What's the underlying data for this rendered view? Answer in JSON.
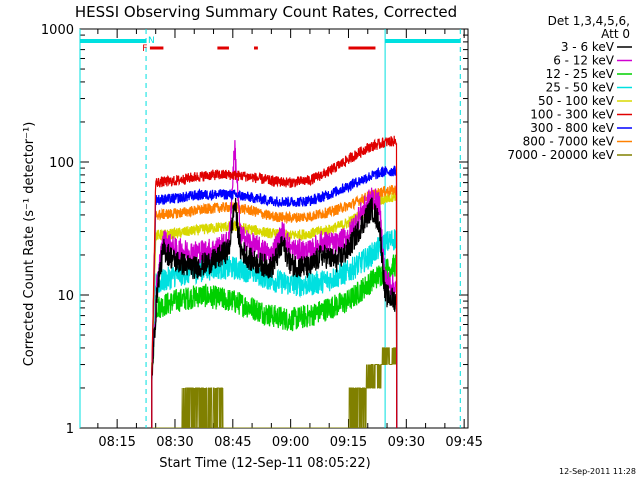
{
  "chart_data": {
    "type": "line",
    "title": "HESSI Observing Summary Count Rates, Corrected",
    "xlabel": "Start Time (12-Sep-11 08:05:22)",
    "ylabel": "Corrected Count Rate (s⁻¹ detector⁻¹)",
    "x_scale": "time",
    "y_scale": "log",
    "xlim": [
      "08:05:22",
      "09:46:00"
    ],
    "ylim": [
      1,
      1000
    ],
    "x_ticks": [
      "08:15",
      "08:30",
      "08:45",
      "09:00",
      "09:15",
      "09:30",
      "09:45"
    ],
    "y_ticks": [
      {
        "value": 1,
        "label": "1"
      },
      {
        "value": 10,
        "label": "10"
      },
      {
        "value": 100,
        "label": "100"
      },
      {
        "value": 1000,
        "label": "1000"
      }
    ],
    "legend": {
      "header": [
        "Det 1,3,4,5,6,",
        "Att 0"
      ],
      "position": "top-right, outside plot"
    },
    "series": [
      {
        "name": "3 - 6 keV",
        "color": "#000000",
        "points": [
          [
            "08:24:00",
            2.5
          ],
          [
            "08:25:30",
            12
          ],
          [
            "08:27:00",
            22
          ],
          [
            "08:30:00",
            18
          ],
          [
            "08:35:00",
            16
          ],
          [
            "08:40:00",
            18
          ],
          [
            "08:44:00",
            22
          ],
          [
            "08:45:30",
            50
          ],
          [
            "08:47:00",
            22
          ],
          [
            "08:50:00",
            18
          ],
          [
            "08:55:00",
            16
          ],
          [
            "08:58:00",
            24
          ],
          [
            "09:00:00",
            17
          ],
          [
            "09:05:00",
            16
          ],
          [
            "09:08:00",
            20
          ],
          [
            "09:12:00",
            18
          ],
          [
            "09:15:00",
            22
          ],
          [
            "09:18:00",
            32
          ],
          [
            "09:21:00",
            45
          ],
          [
            "09:23:00",
            35
          ],
          [
            "09:24:30",
            10
          ],
          [
            "09:27:30",
            9
          ]
        ]
      },
      {
        "name": "6 - 12 keV",
        "color": "#d000d0",
        "points": [
          [
            "08:24:00",
            2.5
          ],
          [
            "08:25:30",
            14
          ],
          [
            "08:27:00",
            26
          ],
          [
            "08:30:00",
            22
          ],
          [
            "08:35:00",
            21
          ],
          [
            "08:40:00",
            22
          ],
          [
            "08:44:00",
            25
          ],
          [
            "08:45:30",
            130
          ],
          [
            "08:47:00",
            28
          ],
          [
            "08:50:00",
            24
          ],
          [
            "08:55:00",
            20
          ],
          [
            "08:58:00",
            30
          ],
          [
            "09:00:00",
            22
          ],
          [
            "09:05:00",
            21
          ],
          [
            "09:08:00",
            25
          ],
          [
            "09:12:00",
            24
          ],
          [
            "09:15:00",
            28
          ],
          [
            "09:18:00",
            40
          ],
          [
            "09:21:00",
            55
          ],
          [
            "09:23:00",
            48
          ],
          [
            "09:24:30",
            13
          ],
          [
            "09:27:30",
            11
          ]
        ]
      },
      {
        "name": "12 - 25 keV",
        "color": "#00d000",
        "points": [
          [
            "08:24:00",
            2.5
          ],
          [
            "08:25:00",
            8
          ],
          [
            "08:30:00",
            9
          ],
          [
            "08:37:00",
            10
          ],
          [
            "08:45:00",
            9
          ],
          [
            "08:50:00",
            8
          ],
          [
            "08:55:00",
            7
          ],
          [
            "09:00:00",
            6.5
          ],
          [
            "09:05:00",
            7
          ],
          [
            "09:10:00",
            8
          ],
          [
            "09:15:00",
            9
          ],
          [
            "09:20:00",
            12
          ],
          [
            "09:24:00",
            15
          ],
          [
            "09:27:30",
            17
          ]
        ]
      },
      {
        "name": "25 - 50 keV",
        "color": "#00e0e0",
        "points": [
          [
            "08:24:00",
            2.5
          ],
          [
            "08:25:00",
            12
          ],
          [
            "08:30:00",
            14
          ],
          [
            "08:40:00",
            16
          ],
          [
            "08:45:00",
            16
          ],
          [
            "08:50:00",
            15
          ],
          [
            "08:55:00",
            13
          ],
          [
            "09:00:00",
            12
          ],
          [
            "09:05:00",
            12
          ],
          [
            "09:10:00",
            13
          ],
          [
            "09:15:00",
            15
          ],
          [
            "09:20:00",
            19
          ],
          [
            "09:24:00",
            24
          ],
          [
            "09:27:30",
            27
          ]
        ]
      },
      {
        "name": "50 - 100 keV",
        "color": "#d8d800",
        "points": [
          [
            "08:24:00",
            2.5
          ],
          [
            "08:25:00",
            28
          ],
          [
            "08:30:00",
            29
          ],
          [
            "08:40:00",
            32
          ],
          [
            "08:45:00",
            33
          ],
          [
            "08:50:00",
            31
          ],
          [
            "08:55:00",
            29
          ],
          [
            "09:00:00",
            28
          ],
          [
            "09:05:00",
            29
          ],
          [
            "09:10:00",
            31
          ],
          [
            "09:15:00",
            35
          ],
          [
            "09:20:00",
            44
          ],
          [
            "09:24:00",
            52
          ],
          [
            "09:27:30",
            56
          ]
        ]
      },
      {
        "name": "100 - 300 keV",
        "color": "#e00000",
        "points": [
          [
            "08:24:00",
            2.5
          ],
          [
            "08:25:00",
            70
          ],
          [
            "08:30:00",
            72
          ],
          [
            "08:35:00",
            77
          ],
          [
            "08:40:00",
            80
          ],
          [
            "08:45:00",
            80
          ],
          [
            "08:50:00",
            77
          ],
          [
            "08:55:00",
            72
          ],
          [
            "09:00:00",
            70
          ],
          [
            "09:05:00",
            73
          ],
          [
            "09:10:00",
            85
          ],
          [
            "09:15:00",
            105
          ],
          [
            "09:20:00",
            128
          ],
          [
            "09:24:00",
            140
          ],
          [
            "09:27:30",
            145
          ]
        ]
      },
      {
        "name": "300 - 800 keV",
        "color": "#0000ff",
        "points": [
          [
            "08:24:00",
            2.5
          ],
          [
            "08:25:00",
            52
          ],
          [
            "08:30:00",
            53
          ],
          [
            "08:35:00",
            56
          ],
          [
            "08:40:00",
            57
          ],
          [
            "08:45:00",
            57
          ],
          [
            "08:50:00",
            54
          ],
          [
            "08:55:00",
            51
          ],
          [
            "09:00:00",
            50
          ],
          [
            "09:05:00",
            51
          ],
          [
            "09:10:00",
            57
          ],
          [
            "09:15:00",
            66
          ],
          [
            "09:20:00",
            77
          ],
          [
            "09:24:00",
            84
          ],
          [
            "09:27:30",
            86
          ]
        ]
      },
      {
        "name": "800 - 7000 keV",
        "color": "#ff8000",
        "points": [
          [
            "08:24:00",
            2.5
          ],
          [
            "08:25:00",
            40
          ],
          [
            "08:30:00",
            41
          ],
          [
            "08:40:00",
            45
          ],
          [
            "08:45:00",
            46
          ],
          [
            "08:50:00",
            43
          ],
          [
            "08:55:00",
            39
          ],
          [
            "09:00:00",
            38
          ],
          [
            "09:05:00",
            39
          ],
          [
            "09:10:00",
            42
          ],
          [
            "09:15:00",
            47
          ],
          [
            "09:20:00",
            55
          ],
          [
            "09:24:00",
            60
          ],
          [
            "09:27:30",
            62
          ]
        ]
      },
      {
        "name": "7000 - 20000 keV",
        "color": "#808000",
        "points": [
          [
            "08:24:00",
            1
          ],
          [
            "08:31:30",
            1
          ],
          [
            "08:32:00",
            2
          ],
          [
            "08:42:00",
            2
          ],
          [
            "08:43:00",
            1
          ],
          [
            "09:14:00",
            1
          ],
          [
            "09:16:00",
            2
          ],
          [
            "09:19:00",
            2
          ],
          [
            "09:20:00",
            3
          ],
          [
            "09:23:00",
            3
          ],
          [
            "09:24:00",
            4
          ],
          [
            "09:27:30",
            4
          ]
        ]
      }
    ],
    "annotations": {
      "night_bars": [
        [
          "08:05:22",
          "08:22:30"
        ],
        [
          "09:24:30",
          "09:44:00"
        ]
      ],
      "night_markers": [
        "08:05:22",
        "08:22:30",
        "09:24:30",
        "09:44:00"
      ],
      "flag_bars": [
        [
          "08:23:30",
          "08:27:00"
        ],
        [
          "08:41:00",
          "08:44:00"
        ],
        [
          "08:50:30",
          "08:51:30"
        ],
        [
          "09:15:00",
          "09:22:00"
        ]
      ],
      "flag_labels": [
        {
          "text": "F",
          "time": "08:21:30"
        },
        {
          "text": "N",
          "time": "08:23:00"
        }
      ],
      "colors": {
        "night": "#00e0e0",
        "flag": "#e00000"
      }
    }
  },
  "footer": {
    "timestamp": "12-Sep-2011 11:28"
  }
}
